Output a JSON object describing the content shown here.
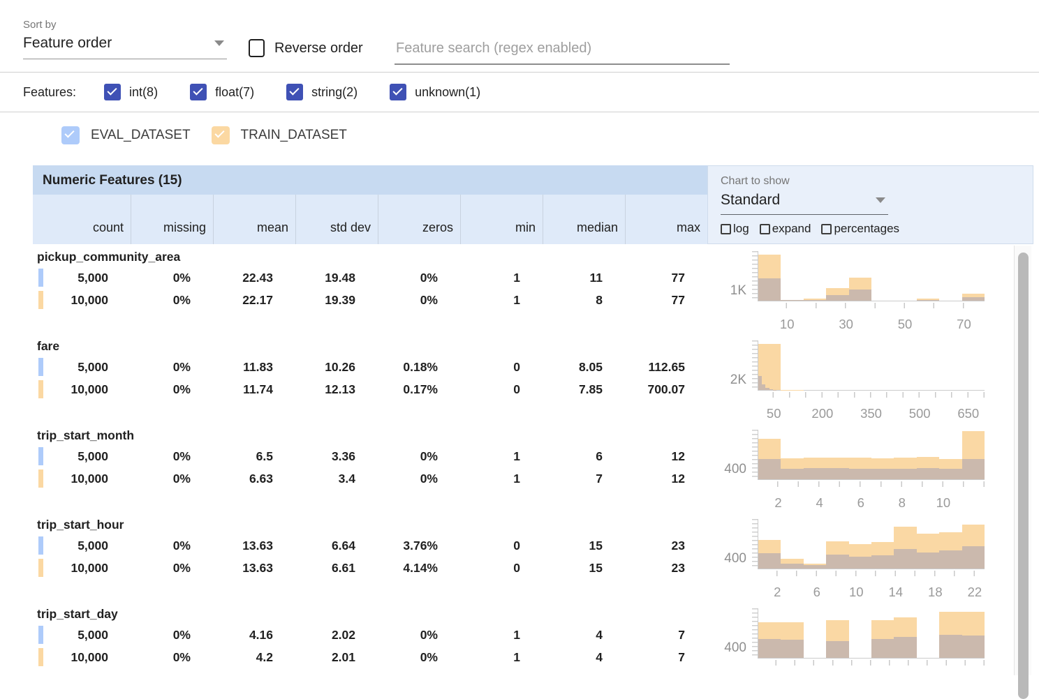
{
  "toolbar": {
    "sort_by_label": "Sort by",
    "sort_value": "Feature order",
    "reverse_label": "Reverse order",
    "search_placeholder": "Feature search (regex enabled)"
  },
  "features_bar": {
    "label": "Features:",
    "types": [
      {
        "label": "int(8)",
        "checked": true
      },
      {
        "label": "float(7)",
        "checked": true
      },
      {
        "label": "string(2)",
        "checked": true
      },
      {
        "label": "unknown(1)",
        "checked": true
      }
    ]
  },
  "datasets": [
    {
      "label": "EVAL_DATASET",
      "color": "#aecbfa",
      "checked": true
    },
    {
      "label": "TRAIN_DATASET",
      "color": "#fbd8a2",
      "checked": true
    }
  ],
  "table": {
    "title": "Numeric Features (15)",
    "columns": [
      "count",
      "missing",
      "mean",
      "std dev",
      "zeros",
      "min",
      "median",
      "max"
    ]
  },
  "chart_controls": {
    "label": "Chart to show",
    "value": "Standard",
    "options": [
      {
        "label": "log",
        "checked": false
      },
      {
        "label": "expand",
        "checked": false
      },
      {
        "label": "percentages",
        "checked": false
      }
    ]
  },
  "features": [
    {
      "name": "pickup_community_area",
      "rows": [
        {
          "dataset": "eval",
          "values": [
            "5,000",
            "0%",
            "22.43",
            "19.48",
            "0%",
            "1",
            "11",
            "77"
          ]
        },
        {
          "dataset": "train",
          "values": [
            "10,000",
            "0%",
            "22.17",
            "19.39",
            "0%",
            "1",
            "8",
            "77"
          ]
        }
      ]
    },
    {
      "name": "fare",
      "rows": [
        {
          "dataset": "eval",
          "values": [
            "5,000",
            "0%",
            "11.83",
            "10.26",
            "0.18%",
            "0",
            "8.05",
            "112.65"
          ]
        },
        {
          "dataset": "train",
          "values": [
            "10,000",
            "0%",
            "11.74",
            "12.13",
            "0.17%",
            "0",
            "7.85",
            "700.07"
          ]
        }
      ]
    },
    {
      "name": "trip_start_month",
      "rows": [
        {
          "dataset": "eval",
          "values": [
            "5,000",
            "0%",
            "6.5",
            "3.36",
            "0%",
            "1",
            "6",
            "12"
          ]
        },
        {
          "dataset": "train",
          "values": [
            "10,000",
            "0%",
            "6.63",
            "3.4",
            "0%",
            "1",
            "7",
            "12"
          ]
        }
      ]
    },
    {
      "name": "trip_start_hour",
      "rows": [
        {
          "dataset": "eval",
          "values": [
            "5,000",
            "0%",
            "13.63",
            "6.64",
            "3.76%",
            "0",
            "15",
            "23"
          ]
        },
        {
          "dataset": "train",
          "values": [
            "10,000",
            "0%",
            "13.63",
            "6.61",
            "4.14%",
            "0",
            "15",
            "23"
          ]
        }
      ]
    },
    {
      "name": "trip_start_day",
      "rows": [
        {
          "dataset": "eval",
          "values": [
            "5,000",
            "0%",
            "4.16",
            "2.02",
            "0%",
            "1",
            "4",
            "7"
          ]
        },
        {
          "dataset": "train",
          "values": [
            "10,000",
            "0%",
            "4.2",
            "2.01",
            "0%",
            "1",
            "4",
            "7"
          ]
        }
      ]
    }
  ],
  "chart_data": [
    {
      "feature": "pickup_community_area",
      "type": "histogram",
      "ylabel": "1K",
      "ymax": 4100,
      "xmin": 0,
      "xmax": 77,
      "tick_step": 10,
      "xtick_labels": [
        10,
        30,
        50,
        70
      ],
      "series": [
        {
          "name": "TRAIN_DATASET",
          "xmin": 0,
          "xmax": 77,
          "counts": [
            3810,
            60,
            165,
            1025,
            1885,
            0,
            0,
            165,
            0,
            575
          ]
        },
        {
          "name": "EVAL_DATASET",
          "xmin": 0,
          "xmax": 77,
          "counts": [
            1850,
            30,
            40,
            490,
            945,
            0,
            0,
            40,
            0,
            285
          ]
        }
      ]
    },
    {
      "feature": "fare",
      "type": "histogram",
      "ylabel": "2K",
      "ymax": 10600,
      "xmin": 0,
      "xmax": 700,
      "tick_step": 50,
      "xtick_labels": [
        50,
        200,
        350,
        500,
        650
      ],
      "series": [
        {
          "name": "TRAIN_DATASET",
          "xmin": 0,
          "xmax": 700,
          "counts": [
            9900,
            40,
            0,
            0,
            0,
            0,
            0,
            0,
            0,
            0
          ]
        },
        {
          "name": "EVAL_DATASET",
          "xmin": 0,
          "xmax": 112.7,
          "counts": [
            2950,
            1150,
            420,
            150,
            60,
            0,
            0,
            0,
            0,
            0
          ]
        }
      ]
    },
    {
      "feature": "trip_start_month",
      "type": "histogram",
      "ylabel": "400",
      "ymax": 2000,
      "xmin": 1,
      "xmax": 12,
      "tick_step": 1,
      "xtick_labels": [
        2,
        4,
        6,
        8,
        10
      ],
      "series": [
        {
          "name": "TRAIN_DATASET",
          "xmin": 1,
          "xmax": 12,
          "counts": [
            1630,
            855,
            880,
            870,
            860,
            850,
            875,
            900,
            820,
            1945
          ]
        },
        {
          "name": "EVAL_DATASET",
          "xmin": 1,
          "xmax": 12,
          "counts": [
            830,
            430,
            440,
            450,
            435,
            430,
            430,
            440,
            420,
            830
          ]
        }
      ]
    },
    {
      "feature": "trip_start_hour",
      "type": "histogram",
      "ylabel": "400",
      "ymax": 1850,
      "xmin": 0,
      "xmax": 23,
      "tick_step": 2,
      "xtick_labels": [
        2,
        6,
        10,
        14,
        18,
        22
      ],
      "series": [
        {
          "name": "TRAIN_DATASET",
          "xmin": 0,
          "xmax": 23,
          "counts": [
            1070,
            360,
            175,
            1025,
            900,
            985,
            1570,
            1315,
            1360,
            1650
          ]
        },
        {
          "name": "EVAL_DATASET",
          "xmin": 0,
          "xmax": 23,
          "counts": [
            570,
            190,
            130,
            525,
            440,
            485,
            735,
            610,
            690,
            840
          ]
        }
      ]
    },
    {
      "feature": "trip_start_day",
      "type": "histogram",
      "ylabel": "400",
      "ymax": 1700,
      "xmin": 1,
      "xmax": 7,
      "tick_step": 0.5,
      "xtick_labels": [],
      "series": [
        {
          "name": "TRAIN_DATASET",
          "xmin": 1,
          "xmax": 7,
          "counts": [
            1215,
            1215,
            0,
            1290,
            0,
            1295,
            1395,
            0,
            1590,
            1590
          ]
        },
        {
          "name": "EVAL_DATASET",
          "xmin": 1,
          "xmax": 7,
          "counts": [
            650,
            630,
            0,
            570,
            0,
            640,
            710,
            0,
            785,
            760
          ]
        }
      ]
    }
  ],
  "colors": {
    "type_checkbox": "#3f51b5",
    "train_bar": "#fad8a4",
    "eval_overlap_bar": "#cbb9ad",
    "table_title_bg": "#c7daf1",
    "col_header_bg": "#dfeaf9",
    "chart_panel_bg": "#e9f0fa"
  }
}
